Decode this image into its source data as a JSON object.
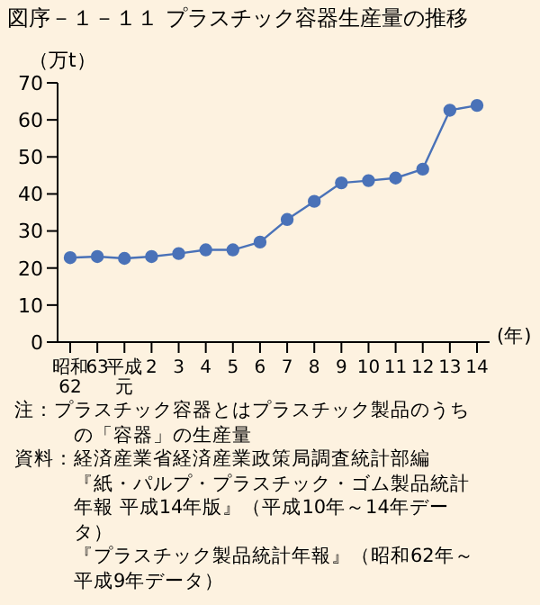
{
  "chart_data": {
    "type": "line",
    "title": "図序－１－１１ プラスチック容器生産量の推移",
    "ylabel": "（万t）",
    "xlabel": "(年)",
    "categories": [
      "昭和62",
      "63",
      "平成元",
      "2",
      "3",
      "4",
      "5",
      "6",
      "7",
      "8",
      "9",
      "10",
      "11",
      "12",
      "13",
      "14"
    ],
    "series": [
      {
        "color": "#4a72b8",
        "values": [
          22.8,
          23.1,
          22.6,
          23.1,
          23.9,
          24.9,
          24.9,
          27.0,
          33.1,
          38.0,
          43.0,
          43.6,
          44.3,
          46.7,
          62.6,
          63.9
        ]
      }
    ],
    "ylim": [
      0,
      70
    ],
    "yticks": [
      0,
      10,
      20,
      30,
      40,
      50,
      60,
      70
    ],
    "grid": false,
    "legend": false,
    "marker": "circle",
    "line_style": "solid",
    "annotations": [
      "注：プラスチック容器とはプラスチック製品のうちの「容器」の生産量",
      "資料：経済産業省経済産業政策局調査統計部編",
      "『紙・パルプ・プラスチック・ゴム製品統計年報 平成14年版』（平成10年～14年データ）",
      "『プラスチック製品統計年報』（昭和62年～平成9年データ）"
    ]
  }
}
